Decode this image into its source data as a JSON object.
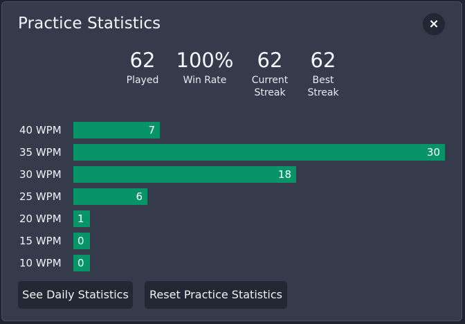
{
  "dialog": {
    "title": "Practice Statistics",
    "close_icon": "×"
  },
  "stats": [
    {
      "value": "62",
      "label": "Played"
    },
    {
      "value": "100%",
      "label": "Win Rate"
    },
    {
      "value": "62",
      "label": "Current\nStreak"
    },
    {
      "value": "62",
      "label": "Best\nStreak"
    }
  ],
  "distribution": {
    "bar_color": "#079568",
    "max": 30,
    "rows": [
      {
        "label": "40 WPM",
        "value": 7
      },
      {
        "label": "35 WPM",
        "value": 30
      },
      {
        "label": "30 WPM",
        "value": 18
      },
      {
        "label": "25 WPM",
        "value": 6
      },
      {
        "label": "20 WPM",
        "value": 1
      },
      {
        "label": "15 WPM",
        "value": 0
      },
      {
        "label": "10 WPM",
        "value": 0
      }
    ]
  },
  "buttons": {
    "daily": "See Daily Statistics",
    "reset": "Reset Practice Statistics"
  }
}
